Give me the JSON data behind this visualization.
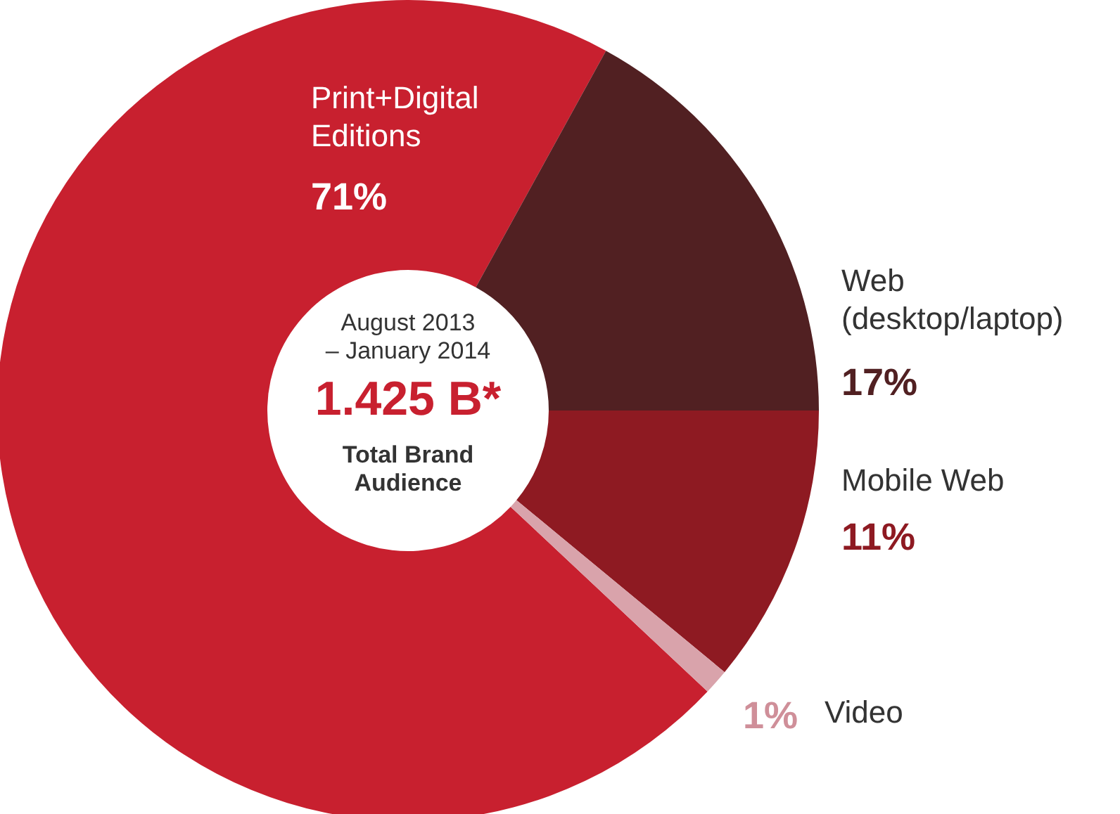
{
  "chart_data": {
    "type": "donut",
    "categories": [
      "Print+Digital Editions",
      "Web (desktop/laptop)",
      "Mobile Web",
      "Video"
    ],
    "values": [
      71,
      17,
      11,
      1
    ],
    "colors": [
      "#c8202f",
      "#512022",
      "#8e1a22",
      "#d9a3ab"
    ],
    "value_labels": [
      "71%",
      "17%",
      "11%",
      "1%"
    ],
    "annotations": [
      "August 2013 – January 2014",
      "1.425 B*",
      "Total Brand Audience"
    ]
  }
}
